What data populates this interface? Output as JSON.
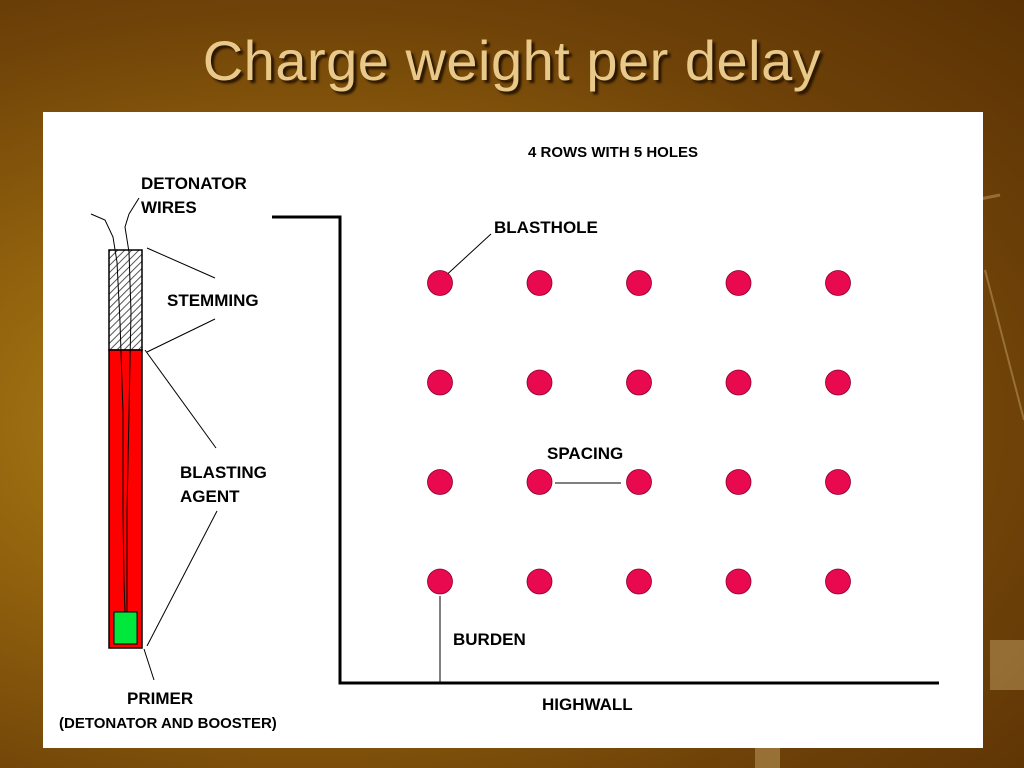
{
  "slide": {
    "title": "Charge weight per delay"
  },
  "diagram": {
    "pattern_title": "4 ROWS WITH 5 HOLES",
    "rows": 4,
    "holes_per_row": 5,
    "labels": {
      "detonator_wires_line1": "DETONATOR",
      "detonator_wires_line2": "WIRES",
      "stemming": "STEMMING",
      "blasting_agent_line1": "BLASTING",
      "blasting_agent_line2": "AGENT",
      "primer": "PRIMER",
      "primer_detail": "(DETONATOR AND BOOSTER)",
      "blasthole": "BLASTHOLE",
      "spacing": "SPACING",
      "burden": "BURDEN",
      "highwall": "HIGHWALL"
    },
    "colors": {
      "blasthole": "#e8094f",
      "blasting_agent": "#ff0000",
      "primer": "#00e83c",
      "stemming": "#c8c8c8",
      "title_text": "#e8c98a"
    }
  }
}
